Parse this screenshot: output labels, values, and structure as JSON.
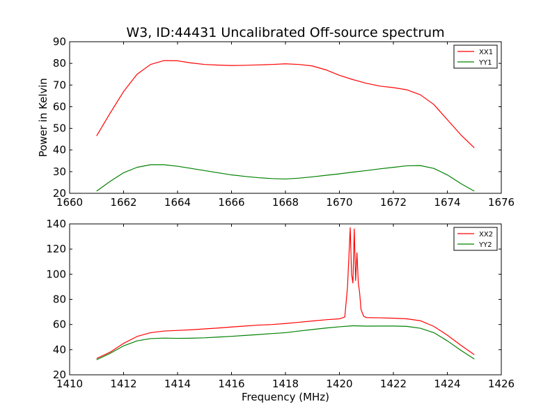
{
  "chart_data": [
    {
      "type": "line",
      "title": "W3, ID:44431 Uncalibrated Off-source spectrum",
      "xlabel": "",
      "ylabel": "Power in Kelvin",
      "xlim": [
        1660,
        1676
      ],
      "ylim": [
        20,
        90
      ],
      "xticks": [
        1660,
        1662,
        1664,
        1666,
        1668,
        1670,
        1672,
        1674,
        1676
      ],
      "yticks": [
        20,
        30,
        40,
        50,
        60,
        70,
        80,
        90
      ],
      "grid": false,
      "legend_position": "top-right",
      "series": [
        {
          "name": "XX1",
          "color": "#ff0000",
          "x": [
            1661.0,
            1661.5,
            1662.0,
            1662.5,
            1663.0,
            1663.5,
            1664.0,
            1664.5,
            1665.0,
            1665.5,
            1666.0,
            1666.5,
            1667.0,
            1667.5,
            1668.0,
            1668.5,
            1669.0,
            1669.5,
            1670.0,
            1670.5,
            1671.0,
            1671.5,
            1672.0,
            1672.5,
            1673.0,
            1673.5,
            1674.0,
            1674.5,
            1675.0
          ],
          "y": [
            46.5,
            57,
            67,
            75,
            79.5,
            81.3,
            81.2,
            80.2,
            79.5,
            79.2,
            79.0,
            79.1,
            79.3,
            79.5,
            79.8,
            79.5,
            78.8,
            77.0,
            74.5,
            72.5,
            70.8,
            69.5,
            68.8,
            67.8,
            65.5,
            61.0,
            54.0,
            47.0,
            41.0
          ]
        },
        {
          "name": "YY1",
          "color": "#008000",
          "x": [
            1661.0,
            1661.5,
            1662.0,
            1662.5,
            1663.0,
            1663.5,
            1664.0,
            1664.5,
            1665.0,
            1665.5,
            1666.0,
            1666.5,
            1667.0,
            1667.5,
            1668.0,
            1668.5,
            1669.0,
            1669.5,
            1670.0,
            1670.5,
            1671.0,
            1671.5,
            1672.0,
            1672.5,
            1673.0,
            1673.5,
            1674.0,
            1674.5,
            1675.0
          ],
          "y": [
            21.0,
            25.5,
            29.5,
            32.0,
            33.2,
            33.2,
            32.5,
            31.5,
            30.5,
            29.5,
            28.5,
            27.8,
            27.2,
            26.8,
            26.6,
            27.0,
            27.6,
            28.3,
            29.0,
            29.8,
            30.5,
            31.3,
            32.0,
            32.7,
            32.8,
            31.5,
            28.5,
            24.5,
            21.0
          ]
        }
      ]
    },
    {
      "type": "line",
      "title": "",
      "xlabel": "Frequency (MHz)",
      "ylabel": "",
      "xlim": [
        1410,
        1426
      ],
      "ylim": [
        20,
        140
      ],
      "xticks": [
        1410,
        1412,
        1414,
        1416,
        1418,
        1420,
        1422,
        1424,
        1426
      ],
      "yticks": [
        20,
        40,
        60,
        80,
        100,
        120,
        140
      ],
      "grid": false,
      "legend_position": "top-right",
      "series": [
        {
          "name": "XX2",
          "color": "#ff0000",
          "x": [
            1411.0,
            1411.5,
            1412.0,
            1412.5,
            1413.0,
            1413.5,
            1414.0,
            1414.5,
            1415.0,
            1415.5,
            1416.0,
            1416.5,
            1417.0,
            1417.5,
            1418.0,
            1418.5,
            1419.0,
            1419.5,
            1420.0,
            1420.2,
            1420.3,
            1420.4,
            1420.45,
            1420.5,
            1420.55,
            1420.6,
            1420.65,
            1420.7,
            1420.75,
            1420.8,
            1420.9,
            1421.0,
            1421.5,
            1422.0,
            1422.5,
            1423.0,
            1423.5,
            1424.0,
            1424.5,
            1425.0
          ],
          "y": [
            33.0,
            38.0,
            45.0,
            50.5,
            53.5,
            54.8,
            55.3,
            55.8,
            56.5,
            57.2,
            58.0,
            58.8,
            59.5,
            60.0,
            60.8,
            61.8,
            62.8,
            63.8,
            64.5,
            66.0,
            90.0,
            137.0,
            100.0,
            93.0,
            136.0,
            95.0,
            117.0,
            93.0,
            85.0,
            72.0,
            66.5,
            65.5,
            65.3,
            65.0,
            64.5,
            63.0,
            58.5,
            51.5,
            43.5,
            36.0
          ]
        },
        {
          "name": "YY2",
          "color": "#008000",
          "x": [
            1411.0,
            1411.5,
            1412.0,
            1412.5,
            1413.0,
            1413.5,
            1414.0,
            1414.5,
            1415.0,
            1415.5,
            1416.0,
            1416.5,
            1417.0,
            1417.5,
            1418.0,
            1418.5,
            1419.0,
            1419.5,
            1420.0,
            1420.5,
            1421.0,
            1421.5,
            1422.0,
            1422.5,
            1423.0,
            1423.5,
            1424.0,
            1424.5,
            1425.0
          ],
          "y": [
            32.0,
            37.0,
            43.0,
            47.0,
            48.8,
            49.2,
            49.0,
            49.1,
            49.4,
            50.0,
            50.6,
            51.3,
            52.0,
            52.8,
            53.5,
            54.8,
            56.0,
            57.2,
            58.2,
            59.0,
            58.7,
            58.8,
            58.8,
            58.5,
            57.0,
            53.5,
            47.0,
            39.5,
            32.5
          ]
        }
      ]
    }
  ]
}
